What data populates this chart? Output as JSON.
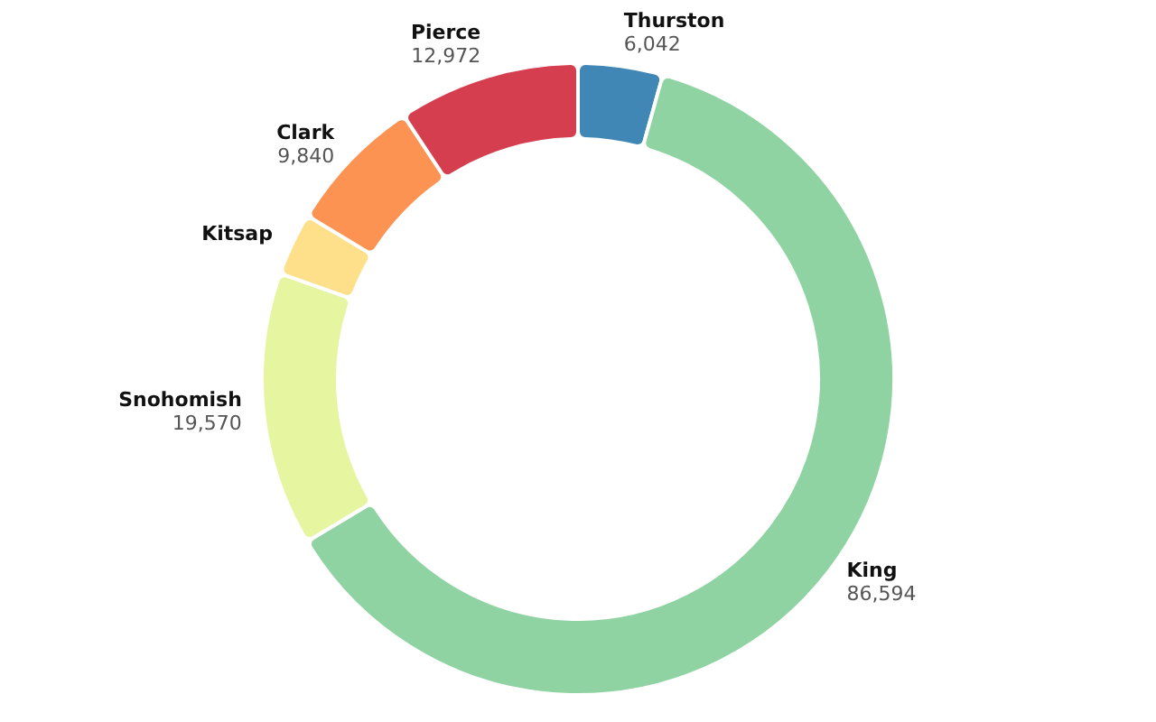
{
  "chart_data": {
    "type": "donut",
    "categories": [
      "Thurston",
      "King",
      "Snohomish",
      "Kitsap",
      "Clark",
      "Pierce"
    ],
    "values": [
      6042,
      86594,
      19570,
      4500,
      9840,
      12972
    ],
    "value_labels": [
      "6,042",
      "86,594",
      "19,570",
      null,
      "9,840",
      "12,972"
    ],
    "colors": [
      "#4187b5",
      "#8fd3a3",
      "#e6f5a0",
      "#fee08b",
      "#fc9352",
      "#d53e4f"
    ],
    "legend": false
  }
}
